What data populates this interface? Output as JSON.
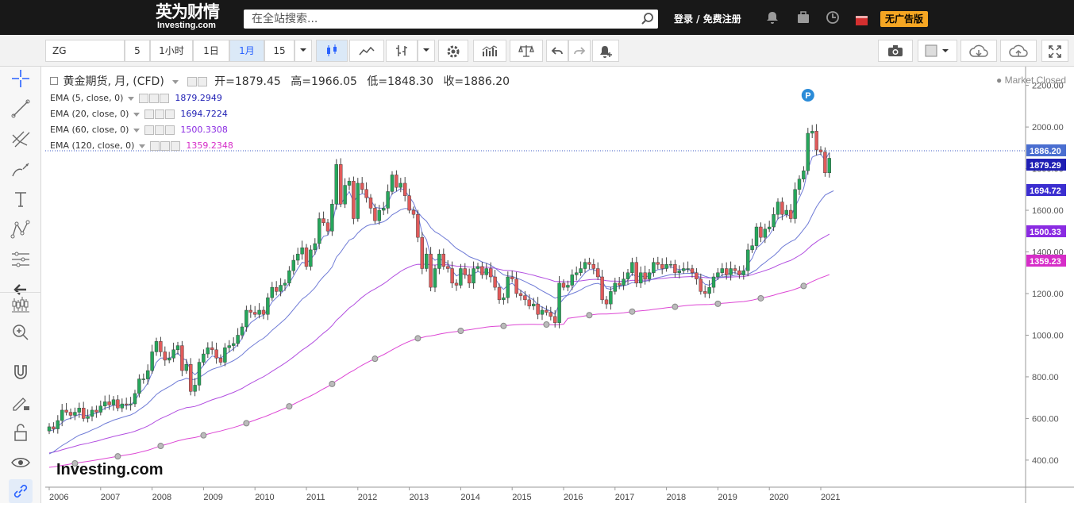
{
  "header": {
    "logo_cn": "英为财情",
    "logo_en": "Investing.com",
    "search_placeholder": "在全站搜索...",
    "login": "登录 / 免费注册",
    "no_ads": "无广告版"
  },
  "toolbar": {
    "symbol": "ZG",
    "interval_5": "5",
    "interval_1h": "1小时",
    "interval_1d": "1日",
    "interval_1m": "1月",
    "interval_15": "15"
  },
  "legend": {
    "title": "黄金期货, 月, (CFD)",
    "open_label": "开=",
    "open": "1879.45",
    "high_label": "高=",
    "high": "1966.05",
    "low_label": "低=",
    "low": "1848.30",
    "close_label": "收=",
    "close": "1886.20",
    "ema": [
      {
        "label": "EMA (5, close, 0)",
        "value": "1879.2949",
        "color": "#1f1fb4"
      },
      {
        "label": "EMA (20, close, 0)",
        "value": "1694.7224",
        "color": "#1f1fb4"
      },
      {
        "label": "EMA (60, close, 0)",
        "value": "1500.3308",
        "color": "#8a2be2"
      },
      {
        "label": "EMA (120, close, 0)",
        "value": "1359.2348",
        "color": "#d62dc8"
      }
    ],
    "market_status": "Market Closed",
    "marker_letter": "P"
  },
  "watermark": "Investing.com",
  "colors": {
    "up": "#26a65b",
    "down": "#e05a5a",
    "ema5": "#6f7bd6",
    "ema20": "#6f7bd6",
    "ema60": "#b24fe0",
    "ema120": "#dd47d4"
  },
  "price_badges": [
    {
      "text": "1886.20",
      "color": "#4a6ed0"
    },
    {
      "text": "1879.29",
      "color": "#1f1fb4"
    },
    {
      "text": "1694.72",
      "color": "#3b2ed0"
    },
    {
      "text": "1500.33",
      "color": "#8a2be2"
    },
    {
      "text": "1359.23",
      "color": "#d62dc8"
    }
  ],
  "chart_data": {
    "type": "candlestick",
    "title": "黄金期货, 月, (CFD)",
    "y_ticks": [
      "2200.00",
      "2000.00",
      "1800.00",
      "1600.00",
      "1400.00",
      "1200.00",
      "1000.00",
      "800.00",
      "600.00",
      "400.00"
    ],
    "x_ticks": [
      "2006",
      "2007",
      "2008",
      "2009",
      "2010",
      "2011",
      "2012",
      "2013",
      "2014",
      "2015",
      "2016",
      "2017",
      "2018",
      "2019",
      "2020",
      "2021"
    ],
    "ylim": [
      270,
      2290
    ],
    "x_start": "2006-01",
    "x_end": "2021-02",
    "current_price": 1886.2,
    "closes": [
      560,
      550,
      590,
      640,
      630,
      615,
      630,
      650,
      600,
      610,
      640,
      630,
      660,
      680,
      665,
      690,
      650,
      670,
      665,
      670,
      720,
      790,
      790,
      830,
      920,
      970,
      920,
      880,
      890,
      930,
      950,
      830,
      860,
      730,
      760,
      870,
      910,
      940,
      930,
      890,
      870,
      940,
      950,
      960,
      1000,
      1040,
      1120,
      1110,
      1100,
      1120,
      1100,
      1180,
      1230,
      1210,
      1240,
      1250,
      1310,
      1360,
      1390,
      1420,
      1330,
      1410,
      1440,
      1560,
      1540,
      1500,
      1630,
      1820,
      1630,
      1720,
      1740,
      1560,
      1730,
      1700,
      1660,
      1610,
      1550,
      1600,
      1610,
      1690,
      1770,
      1710,
      1730,
      1670,
      1600,
      1580,
      1470,
      1320,
      1390,
      1230,
      1320,
      1390,
      1330,
      1320,
      1250,
      1240,
      1320,
      1290,
      1250,
      1320,
      1330,
      1290,
      1320,
      1280,
      1230,
      1170,
      1180,
      1280,
      1270,
      1200,
      1190,
      1170,
      1140,
      1150,
      1100,
      1120,
      1110,
      1090,
      1060,
      1250,
      1230,
      1240,
      1290,
      1300,
      1320,
      1350,
      1340,
      1320,
      1280,
      1170,
      1150,
      1210,
      1250,
      1240,
      1270,
      1300,
      1350,
      1250,
      1300,
      1270,
      1300,
      1350,
      1340,
      1320,
      1340,
      1340,
      1300,
      1310,
      1320,
      1320,
      1300,
      1270,
      1210,
      1200,
      1230,
      1280,
      1300,
      1320,
      1290,
      1320,
      1310,
      1290,
      1310,
      1410,
      1430,
      1520,
      1470,
      1510,
      1520,
      1580,
      1640,
      1580,
      1600,
      1560,
      1700,
      1750,
      1790,
      1970,
      1980,
      1890,
      1880,
      1780,
      1850
    ],
    "ema5": [
      540,
      545,
      560,
      580,
      595,
      600,
      610,
      620,
      615,
      615,
      620,
      625,
      635,
      650,
      655,
      665,
      660,
      662,
      663,
      665,
      685,
      720,
      740,
      770,
      820,
      870,
      890,
      890,
      890,
      900,
      915,
      890,
      880,
      830,
      810,
      830,
      855,
      880,
      900,
      895,
      890,
      905,
      920,
      935,
      955,
      985,
      1030,
      1060,
      1075,
      1090,
      1095,
      1125,
      1160,
      1180,
      1200,
      1220,
      1250,
      1285,
      1320,
      1350,
      1345,
      1365,
      1390,
      1440,
      1475,
      1480,
      1530,
      1630,
      1630,
      1660,
      1690,
      1640,
      1670,
      1680,
      1675,
      1650,
      1615,
      1610,
      1610,
      1635,
      1680,
      1690,
      1705,
      1695,
      1665,
      1635,
      1580,
      1490,
      1460,
      1380,
      1360,
      1370,
      1355,
      1345,
      1310,
      1285,
      1295,
      1295,
      1280,
      1295,
      1305,
      1300,
      1305,
      1295,
      1275,
      1240,
      1220,
      1240,
      1250,
      1230,
      1215,
      1200,
      1180,
      1170,
      1145,
      1135,
      1125,
      1115,
      1100,
      1150,
      1175,
      1195,
      1225,
      1250,
      1275,
      1300,
      1315,
      1315,
      1305,
      1260,
      1225,
      1220,
      1230,
      1235,
      1245,
      1265,
      1295,
      1280,
      1285,
      1280,
      1285,
      1305,
      1315,
      1315,
      1325,
      1330,
      1320,
      1315,
      1315,
      1315,
      1310,
      1295,
      1265,
      1245,
      1240,
      1255,
      1270,
      1290,
      1290,
      1300,
      1300,
      1295,
      1300,
      1340,
      1370,
      1420,
      1435,
      1460,
      1480,
      1515,
      1560,
      1570,
      1580,
      1570,
      1615,
      1660,
      1705,
      1795,
      1855,
      1865,
      1870,
      1840,
      1879
    ],
    "ema20": [
      430,
      440,
      455,
      470,
      482,
      495,
      508,
      520,
      527,
      535,
      545,
      553,
      563,
      575,
      583,
      592,
      598,
      605,
      611,
      617,
      627,
      642,
      656,
      672,
      693,
      715,
      730,
      742,
      753,
      766,
      780,
      785,
      793,
      787,
      788,
      797,
      810,
      825,
      836,
      843,
      849,
      858,
      868,
      878,
      891,
      906,
      926,
      943,
      958,
      973,
      985,
      1003,
      1024,
      1041,
      1059,
      1077,
      1099,
      1124,
      1149,
      1173,
      1188,
      1207,
      1228,
      1258,
      1282,
      1302,
      1328,
      1375,
      1399,
      1429,
      1457,
      1466,
      1491,
      1510,
      1524,
      1532,
      1533,
      1539,
      1545,
      1558,
      1578,
      1590,
      1603,
      1609,
      1607,
      1604,
      1591,
      1566,
      1548,
      1517,
      1497,
      1486,
      1470,
      1456,
      1436,
      1417,
      1405,
      1392,
      1377,
      1369,
      1362,
      1352,
      1346,
      1336,
      1323,
      1305,
      1290,
      1285,
      1283,
      1275,
      1267,
      1258,
      1247,
      1238,
      1225,
      1213,
      1202,
      1191,
      1178,
      1184,
      1188,
      1192,
      1200,
      1208,
      1218,
      1230,
      1239,
      1246,
      1249,
      1241,
      1233,
      1231,
      1233,
      1234,
      1237,
      1243,
      1253,
      1253,
      1257,
      1259,
      1263,
      1271,
      1277,
      1281,
      1286,
      1291,
      1292,
      1294,
      1296,
      1297,
      1297,
      1296,
      1291,
      1283,
      1277,
      1274,
      1275,
      1279,
      1283,
      1284,
      1288,
      1290,
      1290,
      1292,
      1303,
      1314,
      1334,
      1349,
      1366,
      1381,
      1400,
      1423,
      1437,
      1450,
      1459,
      1482,
      1508,
      1535,
      1577,
      1617,
      1647,
      1673,
      1684,
      1694
    ]
  }
}
